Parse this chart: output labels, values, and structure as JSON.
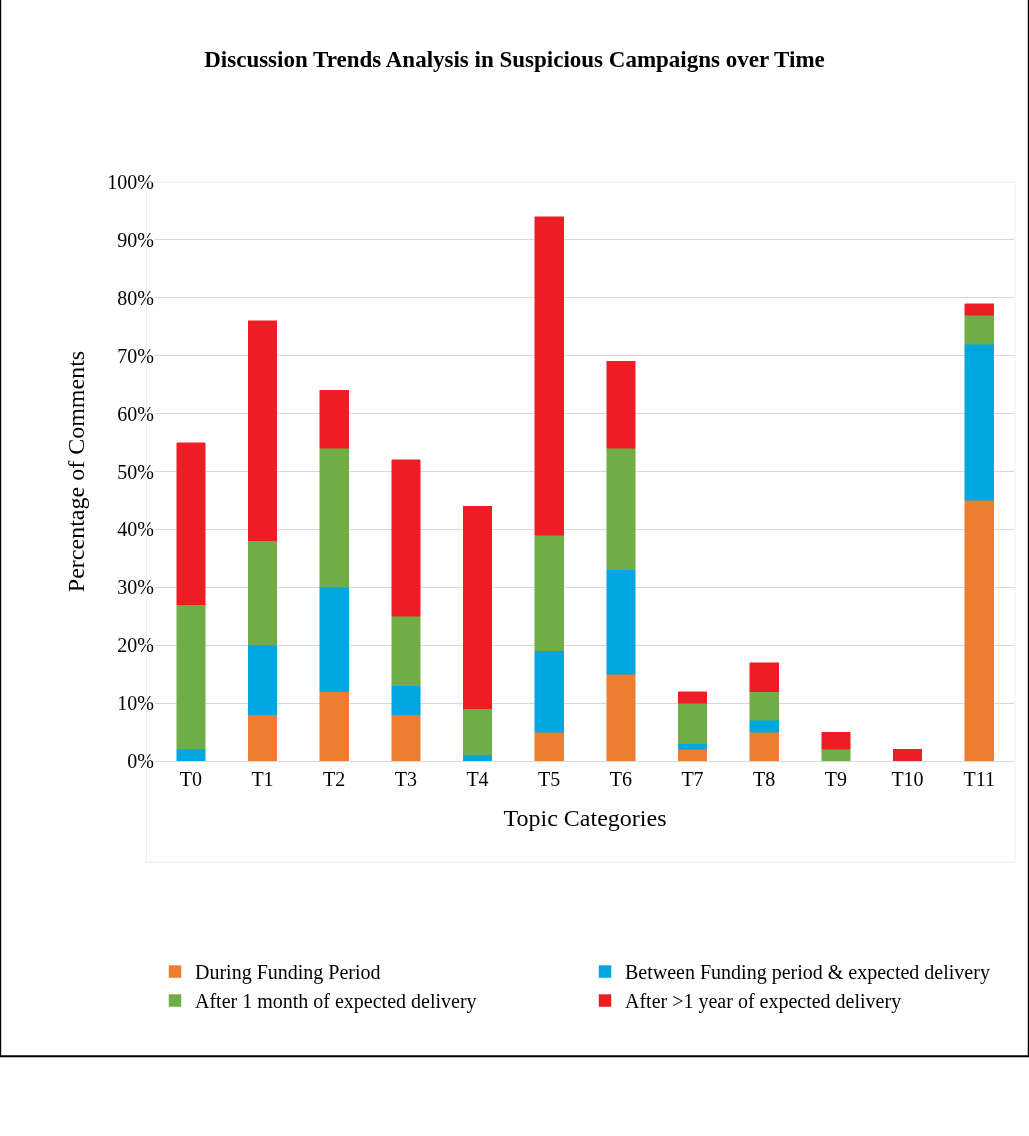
{
  "chart_data": {
    "type": "bar",
    "stacked": true,
    "title": "Discussion Trends Analysis in Suspicious Campaigns over Time",
    "xlabel": "Topic Categories",
    "ylabel": "Percentage of Comments",
    "categories": [
      "T0",
      "T1",
      "T2",
      "T3",
      "T4",
      "T5",
      "T6",
      "T7",
      "T8",
      "T9",
      "T10",
      "T11"
    ],
    "series": [
      {
        "name": "During Funding Period",
        "color": "#ed7d31",
        "values": [
          0,
          8,
          12,
          8,
          0,
          5,
          15,
          2,
          5,
          0,
          0,
          45
        ]
      },
      {
        "name": "Between Funding period & expected delivery",
        "color": "#00a6e0",
        "values": [
          2,
          12,
          18,
          5,
          1,
          14,
          18,
          1,
          2,
          0,
          0,
          27
        ]
      },
      {
        "name": "After 1 month of expected delivery",
        "color": "#70ad47",
        "values": [
          25,
          18,
          24,
          12,
          8,
          20,
          21,
          7,
          5,
          2,
          0,
          5
        ]
      },
      {
        "name": "After >1 year of expected delivery",
        "color": "#ee1c25",
        "values": [
          28,
          38,
          10,
          27,
          35,
          55,
          15,
          2,
          5,
          3,
          2,
          2
        ]
      }
    ],
    "ylim": [
      0,
      100
    ],
    "yticks": [
      {
        "value": 0,
        "label": "0%"
      },
      {
        "value": 10,
        "label": "10%"
      },
      {
        "value": 20,
        "label": "20%"
      },
      {
        "value": 30,
        "label": "30%"
      },
      {
        "value": 40,
        "label": "40%"
      },
      {
        "value": 50,
        "label": "50%"
      },
      {
        "value": 60,
        "label": "60%"
      },
      {
        "value": 70,
        "label": "70%"
      },
      {
        "value": 80,
        "label": "80%"
      },
      {
        "value": 90,
        "label": "90%"
      },
      {
        "value": 100,
        "label": "100%"
      }
    ],
    "grid": "y",
    "legend": "bottom"
  }
}
